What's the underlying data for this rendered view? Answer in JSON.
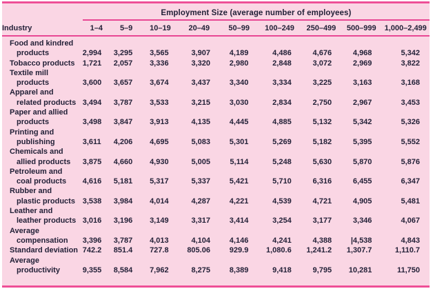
{
  "chart_data": {
    "type": "table",
    "title": "Employment Size (average number of employees)",
    "row_header_label": "Industry",
    "columns": [
      "1–4",
      "5–9",
      "10–19",
      "20–49",
      "50–99",
      "100–249",
      "250–499",
      "500–999",
      "1,000–2,499"
    ],
    "rows": [
      {
        "name": "Food and kindred products",
        "label_lines": [
          "Food and kindred",
          "products"
        ],
        "values": [
          "2,994",
          "3,295",
          "3,565",
          "3,907",
          "4,189",
          "4,486",
          "4,676",
          "4,968",
          "5,342"
        ]
      },
      {
        "name": "Tobacco products",
        "label_lines": [
          "Tobacco products"
        ],
        "values": [
          "1,721",
          "2,057",
          "3,336",
          "3,320",
          "2,980",
          "2,848",
          "3,072",
          "2,969",
          "3,822"
        ]
      },
      {
        "name": "Textile mill products",
        "label_lines": [
          "Textile mill",
          "products"
        ],
        "values": [
          "3,600",
          "3,657",
          "3,674",
          "3,437",
          "3,340",
          "3,334",
          "3,225",
          "3,163",
          "3,168"
        ]
      },
      {
        "name": "Apparel and related products",
        "label_lines": [
          "Apparel and",
          "related products"
        ],
        "values": [
          "3,494",
          "3,787",
          "3,533",
          "3,215",
          "3,030",
          "2,834",
          "2,750",
          "2,967",
          "3,453"
        ]
      },
      {
        "name": "Paper and allied products",
        "label_lines": [
          "Paper and allied",
          "products"
        ],
        "values": [
          "3,498",
          "3,847",
          "3,913",
          "4,135",
          "4,445",
          "4,885",
          "5,132",
          "5,342",
          "5,326"
        ]
      },
      {
        "name": "Printing and publishing",
        "label_lines": [
          "Printing and",
          "publishing"
        ],
        "values": [
          "3,611",
          "4,206",
          "4,695",
          "5,083",
          "5,301",
          "5,269",
          "5,182",
          "5,395",
          "5,552"
        ]
      },
      {
        "name": "Chemicals and allied products",
        "label_lines": [
          "Chemicals and",
          "allied products"
        ],
        "values": [
          "3,875",
          "4,660",
          "4,930",
          "5,005",
          "5,114",
          "5,248",
          "5,630",
          "5,870",
          "5,876"
        ]
      },
      {
        "name": "Petroleum and coal products",
        "label_lines": [
          "Petroleum and",
          "coal products"
        ],
        "values": [
          "4,616",
          "5,181",
          "5,317",
          "5,337",
          "5,421",
          "5,710",
          "6,316",
          "6,455",
          "6,347"
        ]
      },
      {
        "name": "Rubber and plastic products",
        "label_lines": [
          "Rubber and",
          "plastic products"
        ],
        "values": [
          "3,538",
          "3,984",
          "4,014",
          "4,287",
          "4,221",
          "4,539",
          "4,721",
          "4,905",
          "5,481"
        ]
      },
      {
        "name": "Leather and leather products",
        "label_lines": [
          "Leather and",
          "leather products"
        ],
        "values": [
          "3,016",
          "3,196",
          "3,149",
          "3,317",
          "3,414",
          "3,254",
          "3,177",
          "3,346",
          "4,067"
        ]
      },
      {
        "name": "Average compensation",
        "label_lines": [
          "Average",
          "compensation"
        ],
        "values": [
          "3,396",
          "3,787",
          "4,013",
          "4,104",
          "4,146",
          "4,241",
          "4,388",
          "|4,538",
          "4,843"
        ]
      },
      {
        "name": "Standard deviation",
        "label_lines": [
          "Standard deviation"
        ],
        "values": [
          "742.2",
          "851.4",
          "727.8",
          "805.06",
          "929.9",
          "1,080.6",
          "1,241.2",
          "1,307.7",
          "1,110.7"
        ]
      },
      {
        "name": "Average productivity",
        "label_lines": [
          "Average",
          "productivity"
        ],
        "values": [
          "9,355",
          "8,584",
          "7,962",
          "8,275",
          "8,389",
          "9,418",
          "9,795",
          "10,281",
          "11,750"
        ]
      }
    ]
  },
  "colors": {
    "background": "#fad6e4",
    "accent_pink": "#ee4f97",
    "rule_pink": "#e84693",
    "text": "#232138"
  }
}
